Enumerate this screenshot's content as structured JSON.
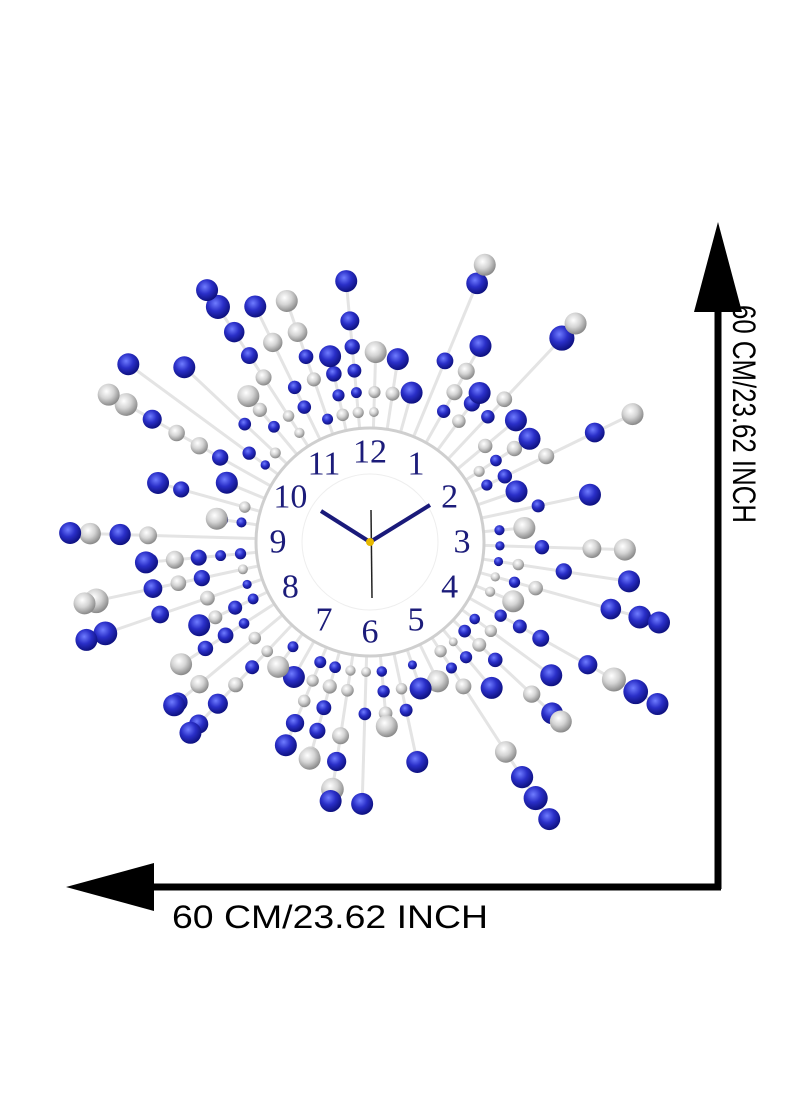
{
  "clock": {
    "numerals": [
      "12",
      "1",
      "2",
      "3",
      "4",
      "5",
      "6",
      "7",
      "8",
      "9",
      "10",
      "11"
    ]
  },
  "dimensions": {
    "width_label": "60 CM/23.62 INCH",
    "height_label": "60 CM/23.62 INCH"
  }
}
